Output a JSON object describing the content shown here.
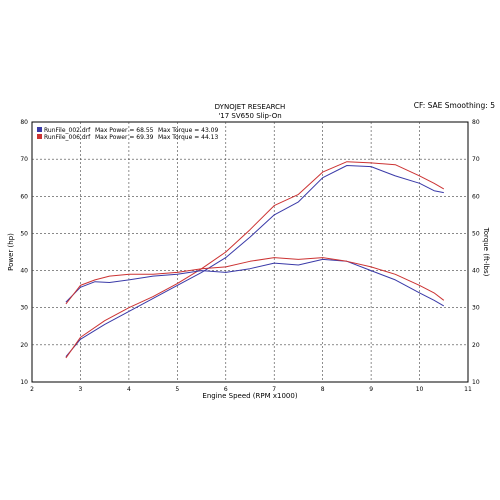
{
  "header": {
    "title": "DYNOJET RESEARCH",
    "subtitle": "'17 SV650 Slip-On",
    "right_info": "CF: SAE  Smoothing: 5"
  },
  "chart_data": {
    "type": "line",
    "xlabel": "Engine Speed (RPM x1000)",
    "ylabel_left": "Power (hp)",
    "ylabel_right": "Torque (ft-lbs)",
    "xlim": [
      2,
      11
    ],
    "ylim": [
      10,
      80
    ],
    "x_ticks": [
      "2",
      "3",
      "4",
      "5",
      "6",
      "7",
      "8",
      "9",
      "10",
      "11"
    ],
    "y_ticks": [
      "10",
      "20",
      "30",
      "40",
      "50",
      "60",
      "70",
      "80"
    ],
    "grid": true,
    "legend_position": "top-left",
    "legend": [
      {
        "file": "RunFile_002.drf",
        "power_label": "Max Power = 68.55",
        "torque_label": "Max Torque = 43.09",
        "color": "#3a3aa8"
      },
      {
        "file": "RunFile_006.drf",
        "power_label": "Max Power = 69.39",
        "torque_label": "Max Torque = 44.13",
        "color": "#cc3333"
      }
    ],
    "series": [
      {
        "kind": "power",
        "file": "RunFile_002.drf",
        "color": "#3a3aa8",
        "x": [
          2.7,
          3.0,
          3.5,
          4.0,
          4.5,
          5.0,
          5.5,
          6.0,
          6.5,
          7.0,
          7.5,
          8.0,
          8.5,
          9.0,
          9.5,
          10.0,
          10.3,
          10.5
        ],
        "y": [
          16.8,
          21.5,
          25.5,
          29.0,
          32.5,
          36.0,
          39.5,
          43.5,
          49.0,
          55.0,
          58.5,
          65.0,
          68.3,
          68.0,
          65.5,
          63.5,
          61.5,
          61.0
        ]
      },
      {
        "kind": "power",
        "file": "RunFile_006.drf",
        "color": "#cc3333",
        "x": [
          2.7,
          3.0,
          3.5,
          4.0,
          4.5,
          5.0,
          5.5,
          6.0,
          6.5,
          7.0,
          7.5,
          8.0,
          8.5,
          9.0,
          9.5,
          10.0,
          10.3,
          10.5
        ],
        "y": [
          16.5,
          22.0,
          26.5,
          30.0,
          33.0,
          36.5,
          40.5,
          45.0,
          51.0,
          57.5,
          60.5,
          66.5,
          69.3,
          69.0,
          68.5,
          65.5,
          63.5,
          62.0
        ]
      },
      {
        "kind": "torque",
        "file": "RunFile_002.drf",
        "color": "#3a3aa8",
        "x": [
          2.7,
          3.0,
          3.3,
          3.6,
          4.0,
          4.5,
          5.0,
          5.5,
          6.0,
          6.5,
          7.0,
          7.5,
          8.0,
          8.5,
          9.0,
          9.5,
          10.0,
          10.3,
          10.5
        ],
        "y": [
          31.5,
          35.5,
          37.0,
          36.8,
          37.5,
          38.5,
          39.0,
          40.0,
          39.5,
          40.5,
          42.0,
          41.5,
          43.0,
          42.5,
          40.0,
          37.5,
          34.0,
          32.0,
          30.5
        ]
      },
      {
        "kind": "torque",
        "file": "RunFile_006.drf",
        "color": "#cc3333",
        "x": [
          2.7,
          3.0,
          3.3,
          3.6,
          4.0,
          4.5,
          5.0,
          5.5,
          6.0,
          6.5,
          7.0,
          7.5,
          8.0,
          8.5,
          9.0,
          9.5,
          10.0,
          10.3,
          10.5
        ],
        "y": [
          31.0,
          36.0,
          37.5,
          38.5,
          39.0,
          39.0,
          39.5,
          40.5,
          41.0,
          42.5,
          43.5,
          43.0,
          43.5,
          42.5,
          41.0,
          39.0,
          36.0,
          34.0,
          32.0
        ]
      }
    ]
  }
}
